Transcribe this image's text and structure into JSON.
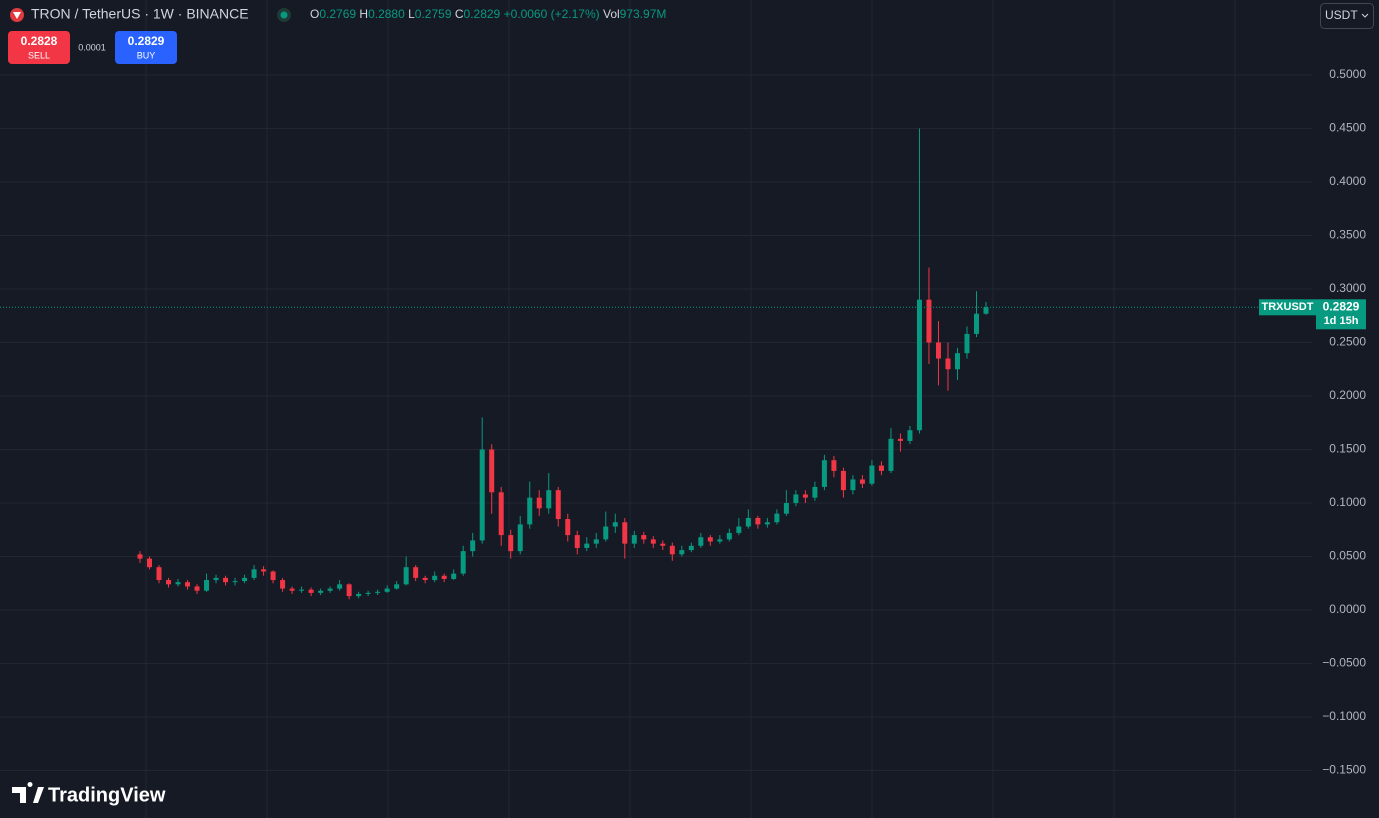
{
  "header": {
    "symbol": "TRON / TetherUS · 1W · BINANCE",
    "legend": [
      {
        "label": "O",
        "value": "0.2769"
      },
      {
        "label": "H",
        "value": "0.2880"
      },
      {
        "label": "L",
        "value": "0.2759"
      },
      {
        "label": "C",
        "value": "0.2829"
      }
    ],
    "change": "+0.0060 (+2.17%)",
    "volume_label": "Vol",
    "volume": "973.97M"
  },
  "trade": {
    "sell_price": "0.2828",
    "sell": "SELL",
    "spread": "0.0001",
    "buy_price": "0.2829",
    "buy": "BUY"
  },
  "currency": "USDT",
  "logo": "TradingView",
  "chart_data": {
    "type": "candlestick",
    "up_color": "#089981",
    "down_color": "#f23645",
    "grid": true,
    "ylim": [
      -0.1916,
      0.5701
    ],
    "yticks": [
      {
        "value": 0.5,
        "label": "0.5000"
      },
      {
        "value": 0.45,
        "label": "0.4500"
      },
      {
        "value": 0.4,
        "label": "0.4000"
      },
      {
        "value": 0.35,
        "label": "0.3500"
      },
      {
        "value": 0.3,
        "label": "0.3000"
      },
      {
        "value": 0.25,
        "label": "0.2500"
      },
      {
        "value": 0.2,
        "label": "0.2000"
      },
      {
        "value": 0.15,
        "label": "0.1500"
      },
      {
        "value": 0.1,
        "label": "0.1000"
      },
      {
        "value": 0.05,
        "label": "0.0500"
      },
      {
        "value": 0,
        "label": "0.0000"
      },
      {
        "value": -0.05,
        "label": "−0.0500"
      },
      {
        "value": -0.1,
        "label": "−0.1000"
      },
      {
        "value": -0.15,
        "label": "−0.1500"
      }
    ],
    "last_symbol": "TRXUSDT",
    "last_price": 0.2829,
    "countdown": "1d 15h",
    "ohlc": [
      [
        0.052,
        0.055,
        0.044,
        0.048
      ],
      [
        0.048,
        0.05,
        0.038,
        0.04
      ],
      [
        0.04,
        0.042,
        0.025,
        0.028
      ],
      [
        0.028,
        0.03,
        0.021,
        0.024
      ],
      [
        0.024,
        0.029,
        0.022,
        0.026
      ],
      [
        0.026,
        0.028,
        0.019,
        0.022
      ],
      [
        0.022,
        0.024,
        0.015,
        0.018
      ],
      [
        0.018,
        0.034,
        0.017,
        0.028
      ],
      [
        0.028,
        0.033,
        0.025,
        0.03
      ],
      [
        0.03,
        0.032,
        0.023,
        0.026
      ],
      [
        0.026,
        0.03,
        0.023,
        0.027
      ],
      [
        0.027,
        0.033,
        0.025,
        0.03
      ],
      [
        0.03,
        0.042,
        0.028,
        0.038
      ],
      [
        0.038,
        0.041,
        0.032,
        0.036
      ],
      [
        0.036,
        0.037,
        0.025,
        0.028
      ],
      [
        0.028,
        0.03,
        0.017,
        0.02
      ],
      [
        0.02,
        0.022,
        0.015,
        0.018
      ],
      [
        0.018,
        0.022,
        0.016,
        0.019
      ],
      [
        0.019,
        0.021,
        0.013,
        0.016
      ],
      [
        0.016,
        0.02,
        0.014,
        0.018
      ],
      [
        0.018,
        0.022,
        0.016,
        0.02
      ],
      [
        0.02,
        0.028,
        0.018,
        0.024
      ],
      [
        0.024,
        0.025,
        0.01,
        0.013
      ],
      [
        0.013,
        0.017,
        0.011,
        0.015
      ],
      [
        0.015,
        0.018,
        0.013,
        0.016
      ],
      [
        0.016,
        0.019,
        0.014,
        0.017
      ],
      [
        0.017,
        0.023,
        0.016,
        0.02
      ],
      [
        0.02,
        0.027,
        0.019,
        0.024
      ],
      [
        0.024,
        0.05,
        0.023,
        0.04
      ],
      [
        0.04,
        0.042,
        0.027,
        0.03
      ],
      [
        0.03,
        0.032,
        0.025,
        0.028
      ],
      [
        0.028,
        0.036,
        0.026,
        0.032
      ],
      [
        0.032,
        0.034,
        0.026,
        0.029
      ],
      [
        0.029,
        0.038,
        0.028,
        0.034
      ],
      [
        0.034,
        0.06,
        0.032,
        0.055
      ],
      [
        0.055,
        0.072,
        0.05,
        0.065
      ],
      [
        0.065,
        0.18,
        0.062,
        0.15
      ],
      [
        0.15,
        0.155,
        0.09,
        0.11
      ],
      [
        0.11,
        0.115,
        0.06,
        0.07
      ],
      [
        0.07,
        0.075,
        0.048,
        0.055
      ],
      [
        0.055,
        0.088,
        0.052,
        0.08
      ],
      [
        0.08,
        0.12,
        0.076,
        0.105
      ],
      [
        0.105,
        0.112,
        0.088,
        0.095
      ],
      [
        0.095,
        0.128,
        0.09,
        0.112
      ],
      [
        0.112,
        0.115,
        0.078,
        0.085
      ],
      [
        0.085,
        0.09,
        0.064,
        0.07
      ],
      [
        0.07,
        0.074,
        0.052,
        0.058
      ],
      [
        0.058,
        0.068,
        0.055,
        0.062
      ],
      [
        0.062,
        0.072,
        0.058,
        0.066
      ],
      [
        0.066,
        0.092,
        0.064,
        0.078
      ],
      [
        0.078,
        0.09,
        0.072,
        0.082
      ],
      [
        0.082,
        0.086,
        0.048,
        0.062
      ],
      [
        0.062,
        0.074,
        0.058,
        0.07
      ],
      [
        0.07,
        0.073,
        0.062,
        0.066
      ],
      [
        0.066,
        0.069,
        0.058,
        0.062
      ],
      [
        0.062,
        0.065,
        0.056,
        0.06
      ],
      [
        0.06,
        0.063,
        0.046,
        0.052
      ],
      [
        0.052,
        0.06,
        0.05,
        0.056
      ],
      [
        0.056,
        0.063,
        0.054,
        0.06
      ],
      [
        0.06,
        0.072,
        0.058,
        0.068
      ],
      [
        0.068,
        0.07,
        0.06,
        0.064
      ],
      [
        0.064,
        0.07,
        0.062,
        0.066
      ],
      [
        0.066,
        0.076,
        0.064,
        0.072
      ],
      [
        0.072,
        0.086,
        0.07,
        0.078
      ],
      [
        0.078,
        0.094,
        0.076,
        0.086
      ],
      [
        0.086,
        0.088,
        0.076,
        0.08
      ],
      [
        0.08,
        0.086,
        0.077,
        0.082
      ],
      [
        0.082,
        0.094,
        0.08,
        0.09
      ],
      [
        0.09,
        0.112,
        0.088,
        0.1
      ],
      [
        0.1,
        0.112,
        0.097,
        0.108
      ],
      [
        0.108,
        0.112,
        0.1,
        0.105
      ],
      [
        0.105,
        0.12,
        0.102,
        0.115
      ],
      [
        0.115,
        0.145,
        0.112,
        0.14
      ],
      [
        0.14,
        0.144,
        0.124,
        0.13
      ],
      [
        0.13,
        0.133,
        0.105,
        0.112
      ],
      [
        0.112,
        0.126,
        0.108,
        0.122
      ],
      [
        0.122,
        0.126,
        0.114,
        0.118
      ],
      [
        0.118,
        0.14,
        0.116,
        0.135
      ],
      [
        0.135,
        0.139,
        0.126,
        0.13
      ],
      [
        0.13,
        0.17,
        0.128,
        0.16
      ],
      [
        0.16,
        0.165,
        0.148,
        0.158
      ],
      [
        0.158,
        0.172,
        0.155,
        0.168
      ],
      [
        0.168,
        0.45,
        0.165,
        0.29
      ],
      [
        0.29,
        0.32,
        0.23,
        0.25
      ],
      [
        0.25,
        0.27,
        0.21,
        0.235
      ],
      [
        0.235,
        0.25,
        0.205,
        0.225
      ],
      [
        0.225,
        0.245,
        0.215,
        0.24
      ],
      [
        0.24,
        0.265,
        0.235,
        0.258
      ],
      [
        0.258,
        0.298,
        0.255,
        0.2769
      ],
      [
        0.2769,
        0.288,
        0.2759,
        0.2829
      ]
    ]
  }
}
